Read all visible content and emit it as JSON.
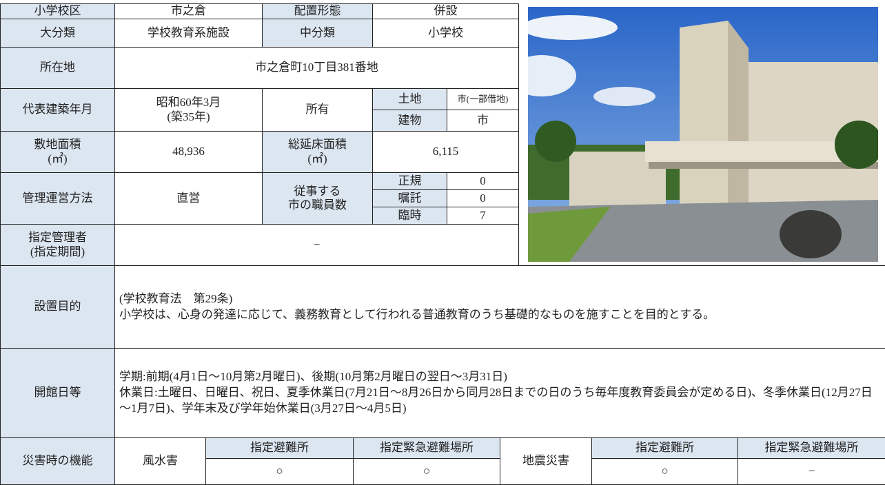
{
  "summary": {
    "school_district": {
      "label": "小学校区",
      "value": "市之倉"
    },
    "placement": {
      "label": "配置形態",
      "value": "併設"
    },
    "major_class": {
      "label": "大分類",
      "value": "学校教育系施設"
    },
    "middle_class": {
      "label": "中分類",
      "value": "小学校"
    },
    "location": {
      "label": "所在地",
      "value": "市之倉町10丁目381番地"
    },
    "built": {
      "label": "代表建築年月",
      "value": "昭和60年3月\n(築35年)"
    },
    "ownership": {
      "label": "所有",
      "land_label": "土地",
      "land_value": "市(一部借地)",
      "building_label": "建物",
      "building_value": "市"
    },
    "site_area": {
      "label": "敷地面積\n(㎡)",
      "value": "48,936"
    },
    "floor_area": {
      "label": "総延床面積\n(㎡)",
      "value": "6,115"
    },
    "management": {
      "label": "管理運営方法",
      "value": "直営"
    },
    "staff": {
      "label": "従事する\n市の職員数",
      "rows": [
        [
          "正規",
          "0"
        ],
        [
          "嘱託",
          "0"
        ],
        [
          "臨時",
          "7"
        ]
      ]
    },
    "designated_manager": {
      "label": "指定管理者\n(指定期間)",
      "value": "−"
    }
  },
  "purpose": {
    "label": "設置目的",
    "text": "(学校教育法　第29条)\n小学校は、心身の発達に応じて、義務教育として行われる普通教育のうち基礎的なものを施すことを目的とする。"
  },
  "opening": {
    "label": "開館日等",
    "text": "学期:前期(4月1日～10月第2月曜日)、後期(10月第2月曜日の翌日～3月31日)\n休業日:土曜日、日曜日、祝日、夏季休業日(7月21日～8月26日から同月28日までの日のうち毎年度教育委員会が定める日)、冬季休業日(12月27日～1月7日)、学年末及び学年始休業日(3月27日～4月5日)"
  },
  "disaster": {
    "label": "災害時の機能",
    "groups": [
      {
        "name": "風水害",
        "headers": [
          "指定避難所",
          "指定緊急避難場所"
        ],
        "values": [
          "○",
          "○"
        ]
      },
      {
        "name": "地震災害",
        "headers": [
          "指定避難所",
          "指定緊急避難場所"
        ],
        "values": [
          "○",
          "−"
        ]
      }
    ]
  }
}
